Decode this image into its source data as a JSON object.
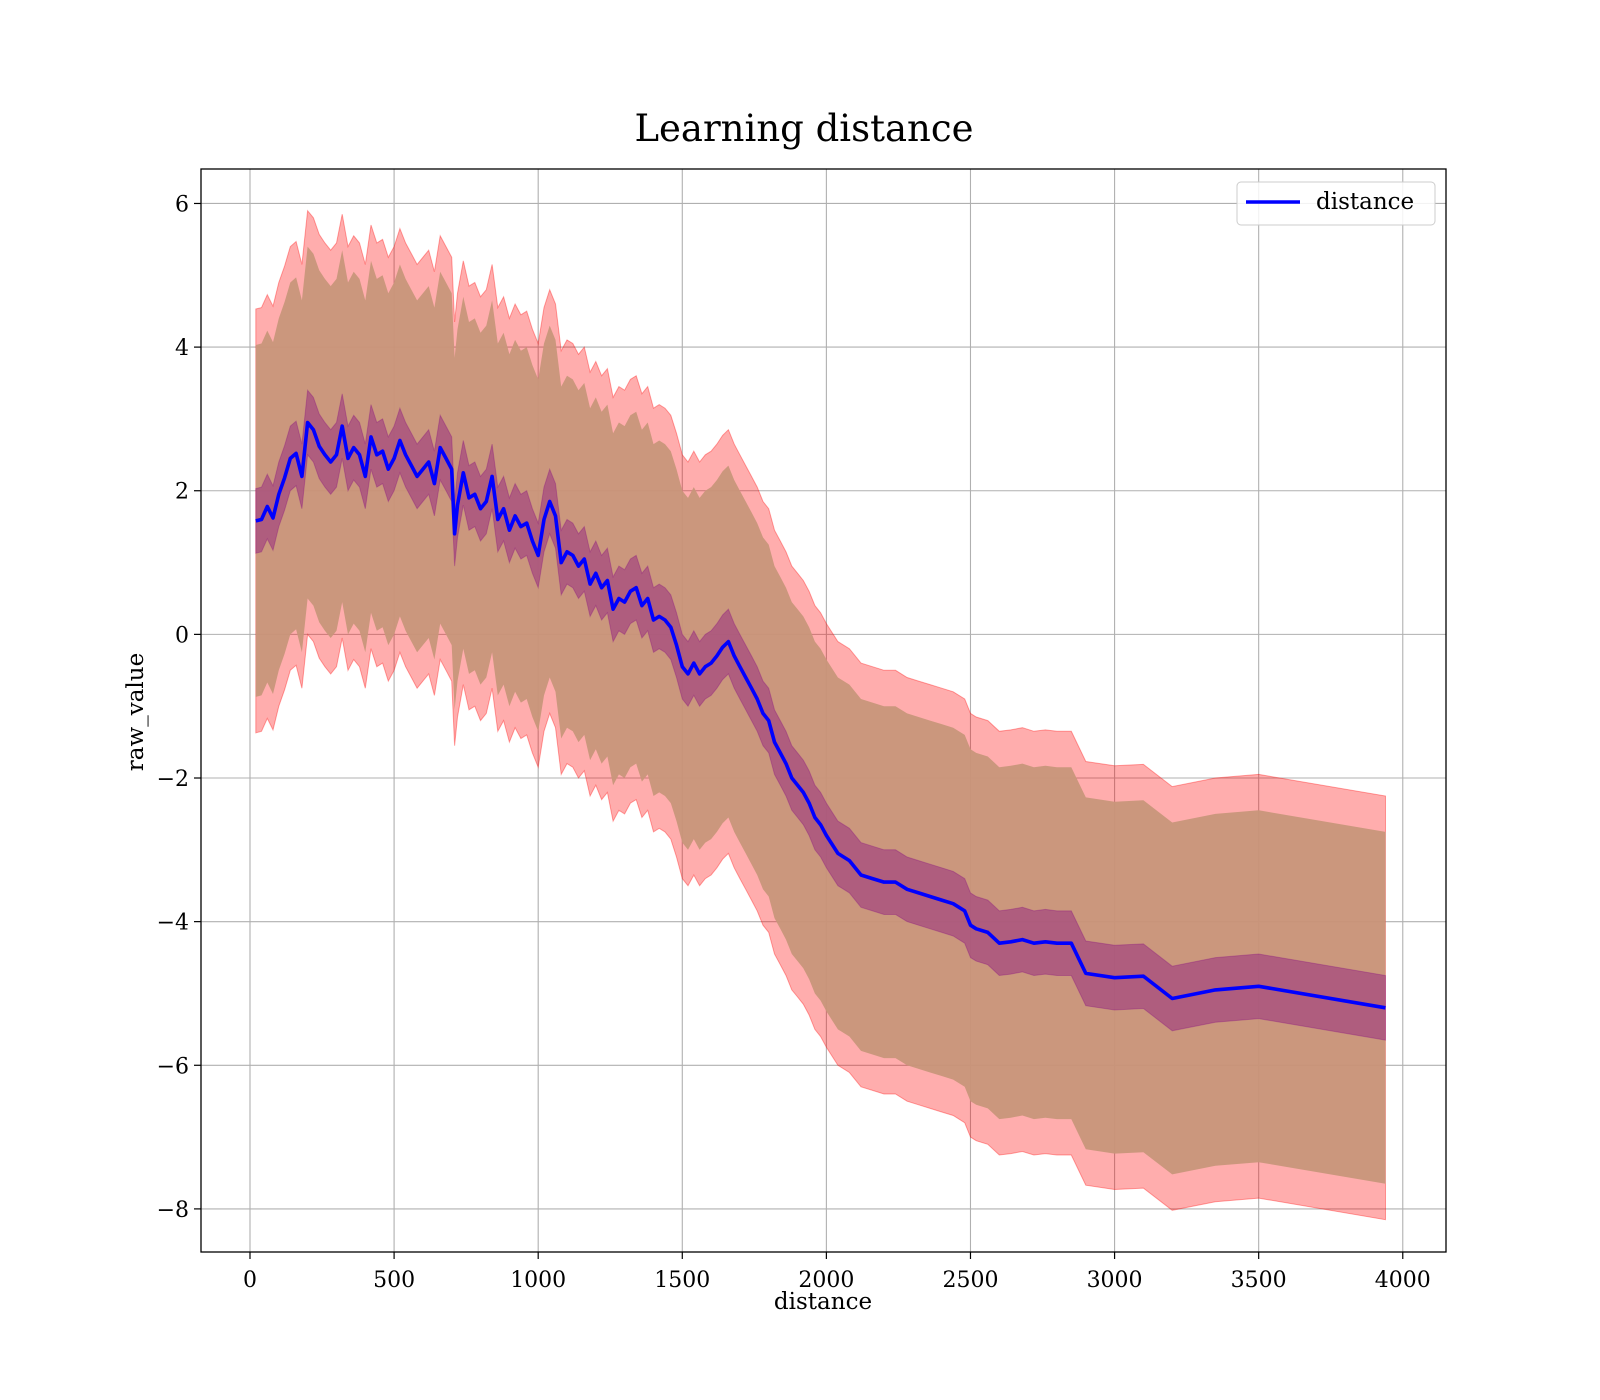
{
  "chart_data": {
    "type": "line",
    "title": "Learning distance",
    "xlabel": "distance",
    "ylabel": "raw_value",
    "xlim": [
      -170,
      4150
    ],
    "ylim": [
      -8.6,
      6.48
    ],
    "xticks": [
      0,
      500,
      1000,
      1500,
      2000,
      2500,
      3000,
      3500,
      4000
    ],
    "yticks": [
      -8,
      -6,
      -4,
      -2,
      0,
      2,
      4,
      6
    ],
    "xtick_labels": [
      "0",
      "500",
      "1000",
      "1500",
      "2000",
      "2500",
      "3000",
      "3500",
      "4000"
    ],
    "ytick_labels": [
      "−8",
      "−6",
      "−4",
      "−2",
      "0",
      "2",
      "4",
      "6"
    ],
    "grid": true,
    "legend": {
      "position": "top-right",
      "entries": [
        "distance"
      ]
    },
    "colors": {
      "line": "#0000ff",
      "inner_band": "#800080",
      "outer_band": "#ff0000",
      "band_overlap": "#c8967a",
      "grid": "#b0b0b0"
    },
    "series": [
      {
        "name": "distance",
        "x": [
          20,
          40,
          60,
          80,
          100,
          120,
          140,
          160,
          180,
          200,
          220,
          240,
          260,
          280,
          300,
          320,
          340,
          360,
          380,
          400,
          420,
          440,
          460,
          480,
          500,
          520,
          540,
          560,
          580,
          600,
          620,
          640,
          660,
          680,
          700,
          710,
          720,
          740,
          760,
          780,
          800,
          820,
          840,
          860,
          880,
          900,
          920,
          940,
          960,
          980,
          1000,
          1020,
          1040,
          1060,
          1080,
          1100,
          1120,
          1140,
          1160,
          1180,
          1200,
          1220,
          1240,
          1260,
          1280,
          1300,
          1320,
          1340,
          1360,
          1380,
          1400,
          1420,
          1440,
          1460,
          1480,
          1500,
          1520,
          1540,
          1560,
          1580,
          1600,
          1620,
          1640,
          1660,
          1680,
          1700,
          1720,
          1740,
          1760,
          1780,
          1800,
          1820,
          1840,
          1860,
          1880,
          1900,
          1920,
          1940,
          1960,
          1980,
          2000,
          2040,
          2080,
          2120,
          2160,
          2200,
          2240,
          2280,
          2320,
          2360,
          2400,
          2440,
          2480,
          2500,
          2520,
          2560,
          2600,
          2640,
          2680,
          2720,
          2760,
          2800,
          2850,
          2900,
          3000,
          3100,
          3200,
          3350,
          3500,
          3940
        ],
        "mean": [
          1.58,
          1.6,
          1.78,
          1.62,
          1.95,
          2.18,
          2.45,
          2.52,
          2.2,
          2.95,
          2.85,
          2.62,
          2.5,
          2.4,
          2.5,
          2.9,
          2.45,
          2.6,
          2.5,
          2.2,
          2.75,
          2.5,
          2.55,
          2.3,
          2.45,
          2.7,
          2.5,
          2.35,
          2.2,
          2.3,
          2.4,
          2.1,
          2.6,
          2.45,
          2.3,
          1.4,
          1.8,
          2.25,
          1.9,
          1.95,
          1.75,
          1.85,
          2.2,
          1.6,
          1.75,
          1.45,
          1.65,
          1.5,
          1.55,
          1.3,
          1.1,
          1.6,
          1.85,
          1.65,
          1.0,
          1.15,
          1.1,
          0.95,
          1.05,
          0.7,
          0.85,
          0.65,
          0.75,
          0.35,
          0.5,
          0.45,
          0.6,
          0.65,
          0.4,
          0.5,
          0.2,
          0.25,
          0.2,
          0.1,
          -0.15,
          -0.45,
          -0.55,
          -0.4,
          -0.55,
          -0.45,
          -0.4,
          -0.3,
          -0.18,
          -0.1,
          -0.3,
          -0.45,
          -0.6,
          -0.75,
          -0.9,
          -1.1,
          -1.2,
          -1.5,
          -1.65,
          -1.8,
          -2.0,
          -2.1,
          -2.2,
          -2.35,
          -2.55,
          -2.65,
          -2.8,
          -3.05,
          -3.15,
          -3.35,
          -3.4,
          -3.45,
          -3.45,
          -3.55,
          -3.6,
          -3.65,
          -3.7,
          -3.75,
          -3.85,
          -4.05,
          -4.1,
          -4.15,
          -4.3,
          -4.28,
          -4.25,
          -4.3,
          -4.28,
          -4.3,
          -4.3,
          -4.72,
          -4.78,
          -4.76,
          -5.07,
          -4.95,
          -4.9,
          -5.2
        ],
        "inner_halfwidth": 0.45,
        "outer_halfwidth": 2.45,
        "outer_extra_halfwidth": 0.5
      }
    ]
  }
}
